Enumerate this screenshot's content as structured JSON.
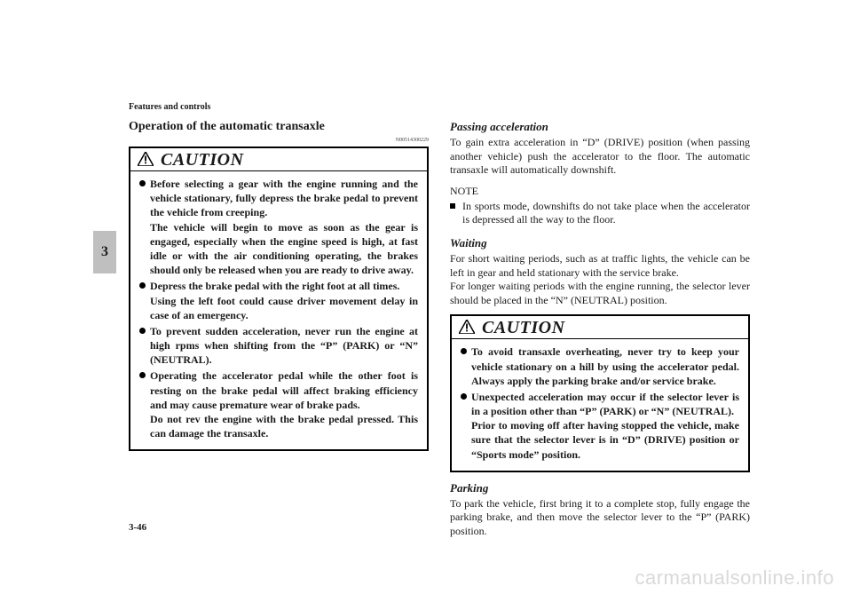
{
  "header": "Features and controls",
  "sideTab": "3",
  "pageNumber": "3-46",
  "watermark": "carmanualsonline.info",
  "docCode": "N00514300229",
  "left": {
    "title": "Operation of the automatic transaxle",
    "caution": {
      "label": "CAUTION",
      "items": [
        "Before selecting a gear with the engine running and the vehicle stationary, fully depress the brake pedal to prevent the vehicle from creeping.\nThe vehicle will begin to move as soon as the gear is engaged, especially when the engine speed is high, at fast idle or with the air conditioning operating, the brakes should only be released when you are ready to drive away.",
        "Depress the brake pedal with the right foot at all times.\nUsing the left foot could cause driver movement delay in case of an emergency.",
        "To prevent sudden acceleration, never run the engine at high rpms when shifting from the “P” (PARK) or “N” (NEUTRAL).",
        "Operating the accelerator pedal while the other foot is resting on the brake pedal will affect braking efficiency and may cause premature wear of brake pads.\nDo not rev the engine with the brake pedal pressed. This can damage the transaxle."
      ]
    }
  },
  "right": {
    "passing": {
      "title": "Passing acceleration",
      "body": "To gain extra acceleration in “D” (DRIVE) position (when passing another vehicle) push the accelerator to the floor. The automatic transaxle will automatically downshift."
    },
    "noteLabel": "NOTE",
    "noteItem": "In sports mode, downshifts do not take place when the accelerator is depressed all the way to the floor.",
    "waiting": {
      "title": "Waiting",
      "body": "For short waiting periods, such as at traffic lights, the vehicle can be left in gear and held stationary with the service brake.\nFor longer waiting periods with the engine running, the selector lever should be placed in the “N” (NEUTRAL) position."
    },
    "caution": {
      "label": "CAUTION",
      "items": [
        "To avoid transaxle overheating, never try to keep your vehicle stationary on a hill by using the accelerator pedal. Always apply the parking brake and/or service brake.",
        "Unexpected acceleration may occur if the selector lever is in a position other than “P” (PARK) or “N” (NEUTRAL).\nPrior to moving off after having stopped the vehicle, make sure that the selector lever is in “D” (DRIVE) position or “Sports mode” position."
      ]
    },
    "parking": {
      "title": "Parking",
      "body": "To park the vehicle, first bring it to a complete stop, fully engage the parking brake, and then move the selector lever to the “P” (PARK) position."
    }
  }
}
